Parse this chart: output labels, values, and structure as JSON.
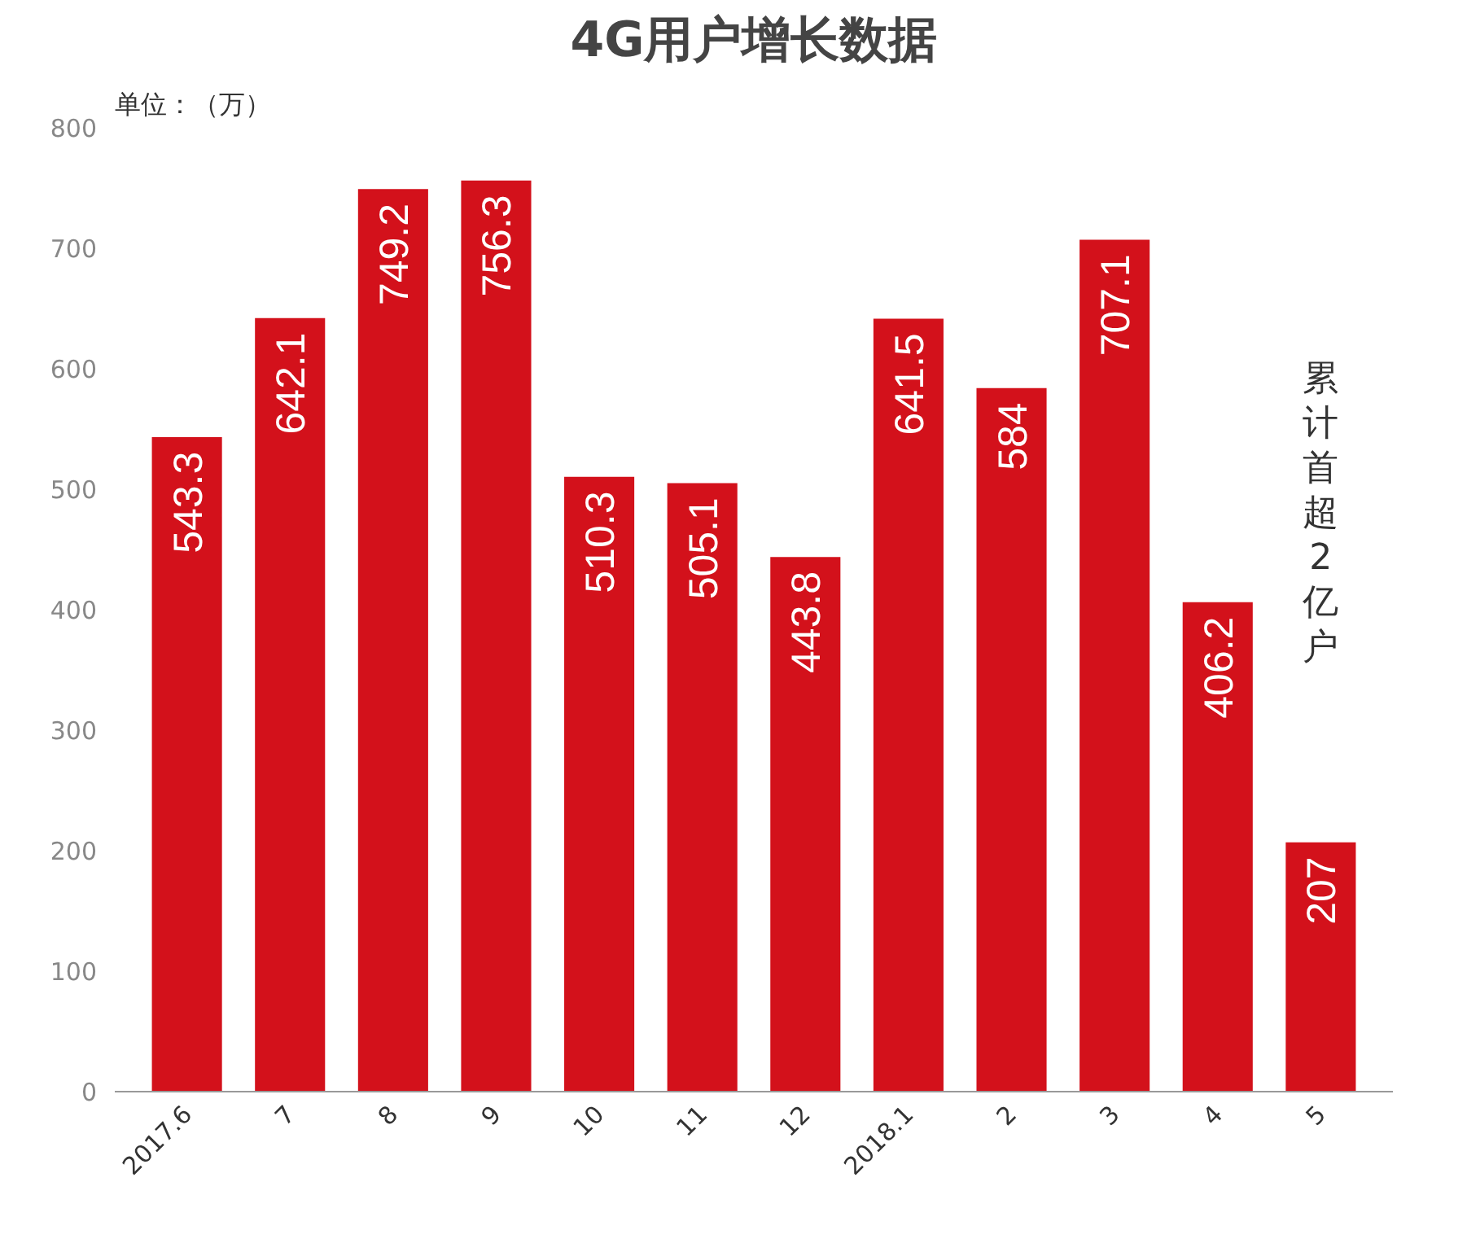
{
  "chart_data": {
    "type": "bar",
    "title": "4G用户增长数据",
    "ylabel": "单位：（万）",
    "categories": [
      "2017.6",
      "7",
      "8",
      "9",
      "10",
      "11",
      "12",
      "2018.1",
      "2",
      "3",
      "4",
      "5"
    ],
    "values": [
      543.3,
      642.1,
      749.2,
      756.3,
      510.3,
      505.1,
      443.8,
      641.5,
      584,
      707.1,
      406.2,
      207
    ],
    "color": "#d3111b",
    "data_labels": true,
    "ylim": [
      0,
      800
    ],
    "yticks": [
      0,
      100,
      200,
      300,
      400,
      500,
      600,
      700,
      800
    ],
    "grid": false,
    "annotations": [
      "累计首超2亿户"
    ]
  }
}
